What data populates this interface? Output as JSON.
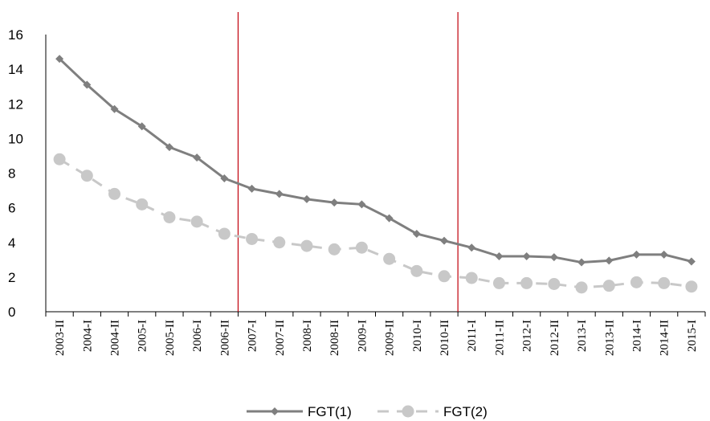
{
  "chart_data": {
    "type": "line",
    "title": "",
    "xlabel": "",
    "ylabel": "",
    "ylim": [
      0,
      16
    ],
    "yticks": [
      0,
      2,
      4,
      6,
      8,
      10,
      12,
      14,
      16
    ],
    "grid": false,
    "legend_position": "bottom",
    "categories": [
      "2003-II",
      "2004-I",
      "2004-II",
      "2005-I",
      "2005-II",
      "2006-I",
      "2006-II",
      "2007-I",
      "2007-II",
      "2008-I",
      "2008-II",
      "2009-I",
      "2009-II",
      "2010-I",
      "2010-II",
      "2011-I",
      "2011-II",
      "2012-I",
      "2012-II",
      "2013-I",
      "2013-II",
      "2014-I",
      "2014-II",
      "2015-I"
    ],
    "vertical_markers": [
      "2007-I",
      "2011-I"
    ],
    "series": [
      {
        "name": "FGT(1)",
        "color": "#7f7f7f",
        "marker": "diamond",
        "line_style": "solid",
        "values": [
          14.6,
          13.1,
          11.7,
          10.7,
          9.5,
          8.9,
          7.7,
          7.1,
          6.8,
          6.5,
          6.3,
          6.2,
          5.4,
          4.5,
          4.1,
          3.7,
          3.2,
          3.2,
          3.15,
          2.85,
          2.95,
          3.3,
          3.3,
          2.9
        ]
      },
      {
        "name": "FGT(2)",
        "color": "#c8c8c8",
        "marker": "circle",
        "line_style": "dashed",
        "values": [
          8.8,
          7.85,
          6.8,
          6.2,
          5.45,
          5.2,
          4.5,
          4.2,
          4.0,
          3.8,
          3.6,
          3.7,
          3.05,
          2.35,
          2.05,
          1.95,
          1.65,
          1.65,
          1.6,
          1.4,
          1.5,
          1.7,
          1.65,
          1.45
        ]
      }
    ],
    "marker_line_color": "#c0000b"
  }
}
